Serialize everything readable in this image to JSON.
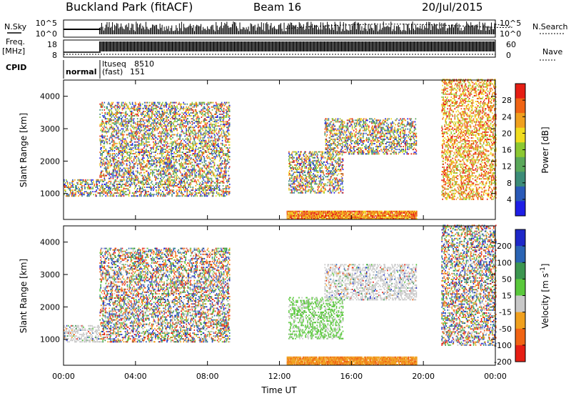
{
  "header": {
    "station": "Buckland Park (fitACF)",
    "beam": "Beam 16",
    "date": "20/Jul/2015"
  },
  "side_labels": {
    "nsky": "N.Sky",
    "freq": "Freq.",
    "freq_unit": "[MHz]",
    "cpid": "CPID",
    "nsearch": "N.Search",
    "nave": "Nave"
  },
  "noise_axis": {
    "top": "10^5",
    "bottom": "10^0"
  },
  "freq_axis": {
    "ticks": [
      "18",
      "8"
    ]
  },
  "nave_axis": {
    "ticks": [
      "60",
      "0"
    ]
  },
  "cpid": {
    "mode1": "normal",
    "mode2_name": "ltuseq",
    "mode2_id": "8510",
    "mode2_sub": "(fast)",
    "mode2_sub_id": "151"
  },
  "chart_data": [
    {
      "type": "heatmap",
      "name": "power-panel",
      "ylabel": "Slant Range [km]",
      "ylim": [
        200,
        4500
      ],
      "y_ticks": [
        "1000",
        "2000",
        "3000",
        "4000"
      ],
      "y_tick_values": [
        1000,
        2000,
        3000,
        4000
      ],
      "xlim": [
        0,
        24
      ],
      "colorbar": {
        "label": "Power [dB]",
        "ticks": [
          "4",
          "8",
          "12",
          "16",
          "20",
          "24",
          "28"
        ],
        "tick_values": [
          4,
          8,
          12,
          16,
          20,
          24,
          28
        ],
        "range": [
          0,
          32
        ],
        "colors": [
          "#1e1ee6",
          "#2a5ab8",
          "#3c8c78",
          "#5aa85a",
          "#8cc832",
          "#f0dc1e",
          "#f0a01e",
          "#f06414",
          "#e61e14"
        ]
      },
      "regions_hours": [
        {
          "t0": 0.0,
          "t1": 2.0,
          "r0": 900,
          "r1": 1400,
          "level": "mixed"
        },
        {
          "t0": 2.0,
          "t1": 9.2,
          "r0": 900,
          "r1": 3800,
          "level": "mixed"
        },
        {
          "t0": 12.4,
          "t1": 19.6,
          "r0": 200,
          "r1": 450,
          "level": "ground-scatter"
        },
        {
          "t0": 12.5,
          "t1": 15.5,
          "r0": 1000,
          "r1": 2300,
          "level": "mixed"
        },
        {
          "t0": 14.5,
          "t1": 19.6,
          "r0": 2200,
          "r1": 3300,
          "level": "mixed"
        },
        {
          "t0": 21.0,
          "t1": 24.0,
          "r0": 800,
          "r1": 4500,
          "level": "high"
        }
      ]
    },
    {
      "type": "heatmap",
      "name": "velocity-panel",
      "ylabel": "Slant Range [km]",
      "ylim": [
        200,
        4500
      ],
      "y_ticks": [
        "1000",
        "2000",
        "3000",
        "4000"
      ],
      "y_tick_values": [
        1000,
        2000,
        3000,
        4000
      ],
      "xlim": [
        0,
        24
      ],
      "xlabel": "Time UT",
      "x_ticks": [
        "00:00",
        "04:00",
        "08:00",
        "12:00",
        "16:00",
        "20:00",
        "00:00"
      ],
      "x_tick_values": [
        0,
        4,
        8,
        12,
        16,
        20,
        24
      ],
      "colorbar": {
        "label": "Velocity [m s^-1]",
        "ticks": [
          "200",
          "100",
          "50",
          "15",
          "-15",
          "-50",
          "-100",
          "-200"
        ],
        "tick_values": [
          200,
          100,
          50,
          15,
          -15,
          -50,
          -100,
          -200
        ],
        "range": [
          -250,
          250
        ],
        "colors": [
          "#e61e14",
          "#f06414",
          "#f0a01e",
          "#c8c8c8",
          "#5ac83c",
          "#3c9650",
          "#2a64b4",
          "#1e28c8"
        ]
      },
      "regions_hours": [
        {
          "t0": 0.0,
          "t1": 2.0,
          "r0": 900,
          "r1": 1400,
          "level": "near-zero"
        },
        {
          "t0": 2.0,
          "t1": 9.2,
          "r0": 900,
          "r1": 3800,
          "level": "mixed"
        },
        {
          "t0": 12.4,
          "t1": 19.6,
          "r0": 200,
          "r1": 450,
          "level": "negative"
        },
        {
          "t0": 12.5,
          "t1": 15.5,
          "r0": 1000,
          "r1": 2300,
          "level": "positive"
        },
        {
          "t0": 14.5,
          "t1": 19.6,
          "r0": 2200,
          "r1": 3300,
          "level": "near-zero"
        },
        {
          "t0": 21.0,
          "t1": 24.0,
          "r0": 800,
          "r1": 4500,
          "level": "mixed"
        }
      ]
    }
  ]
}
